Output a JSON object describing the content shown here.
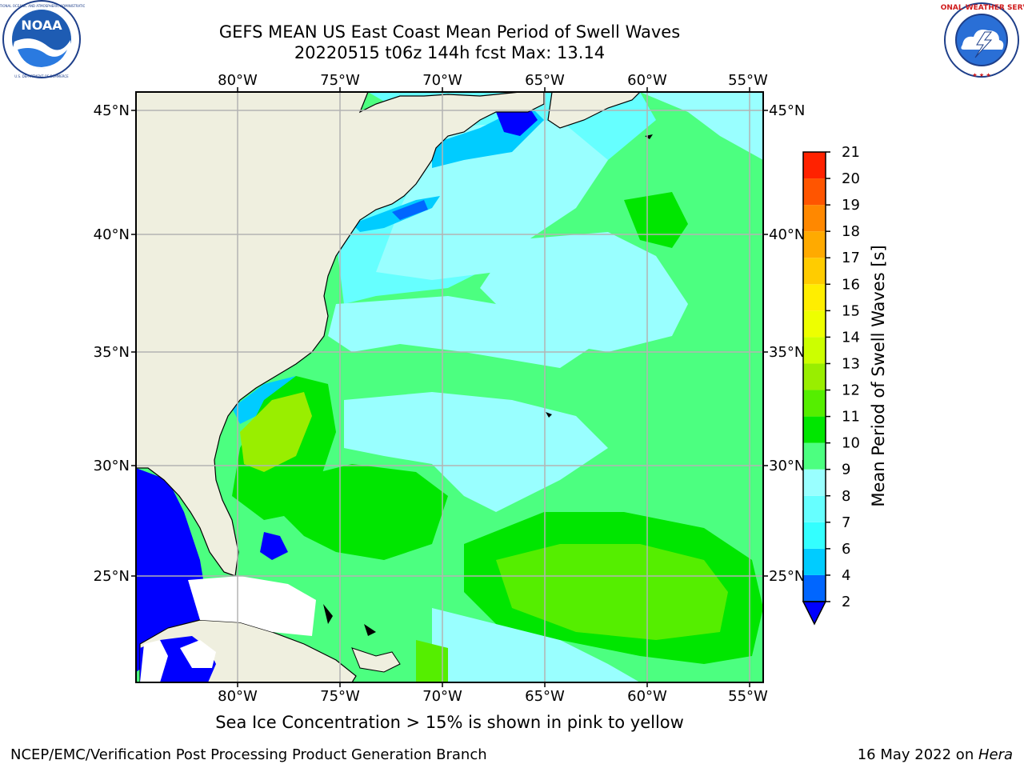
{
  "header": {
    "title_line1": "GEFS MEAN US East Coast Mean Period of Swell Waves",
    "title_line2": "20220515 t06z 144h fcst   Max: 13.14"
  },
  "logos": {
    "left": {
      "name": "noaa-logo",
      "text": "NOAA",
      "ring_text": "NATIONAL OCEANIC AND ATMOSPHERIC ADMINISTRATION · U.S. DEPARTMENT OF COMMERCE"
    },
    "right": {
      "name": "nws-logo",
      "ring_text": "NATIONAL WEATHER SERVICE"
    }
  },
  "map": {
    "lon_labels": [
      "80°W",
      "75°W",
      "70°W",
      "65°W",
      "60°W",
      "55°W"
    ],
    "lat_labels": [
      "45°N",
      "40°N",
      "35°N",
      "30°N",
      "25°N"
    ],
    "colors": {
      "land": "#efefdf",
      "ocean_mid": "#99ffff",
      "grid": "#b3b3b3"
    }
  },
  "colorbar": {
    "label": "Mean Period of Swell Waves [s]",
    "ticks": [
      "2",
      "4",
      "6",
      "7",
      "8",
      "9",
      "10",
      "11",
      "12",
      "13",
      "14",
      "15",
      "16",
      "17",
      "18",
      "19",
      "20",
      "21"
    ],
    "colors": [
      "#0066ff",
      "#00ccff",
      "#33ffff",
      "#66ffff",
      "#99ffff",
      "#4cff80",
      "#00e600",
      "#55ee00",
      "#99ee00",
      "#ccff00",
      "#eeff00",
      "#ffee00",
      "#ffcc00",
      "#ffaa00",
      "#ff8800",
      "#ff5500",
      "#ff2200"
    ],
    "extend_color": "#0000ff"
  },
  "caption": "Sea Ice Concentration > 15% is shown in pink to yellow",
  "footer": {
    "left": "NCEP/EMC/Verification Post Processing Product Generation Branch",
    "right_prefix": "16 May 2022 on ",
    "right_host": "Hera"
  }
}
